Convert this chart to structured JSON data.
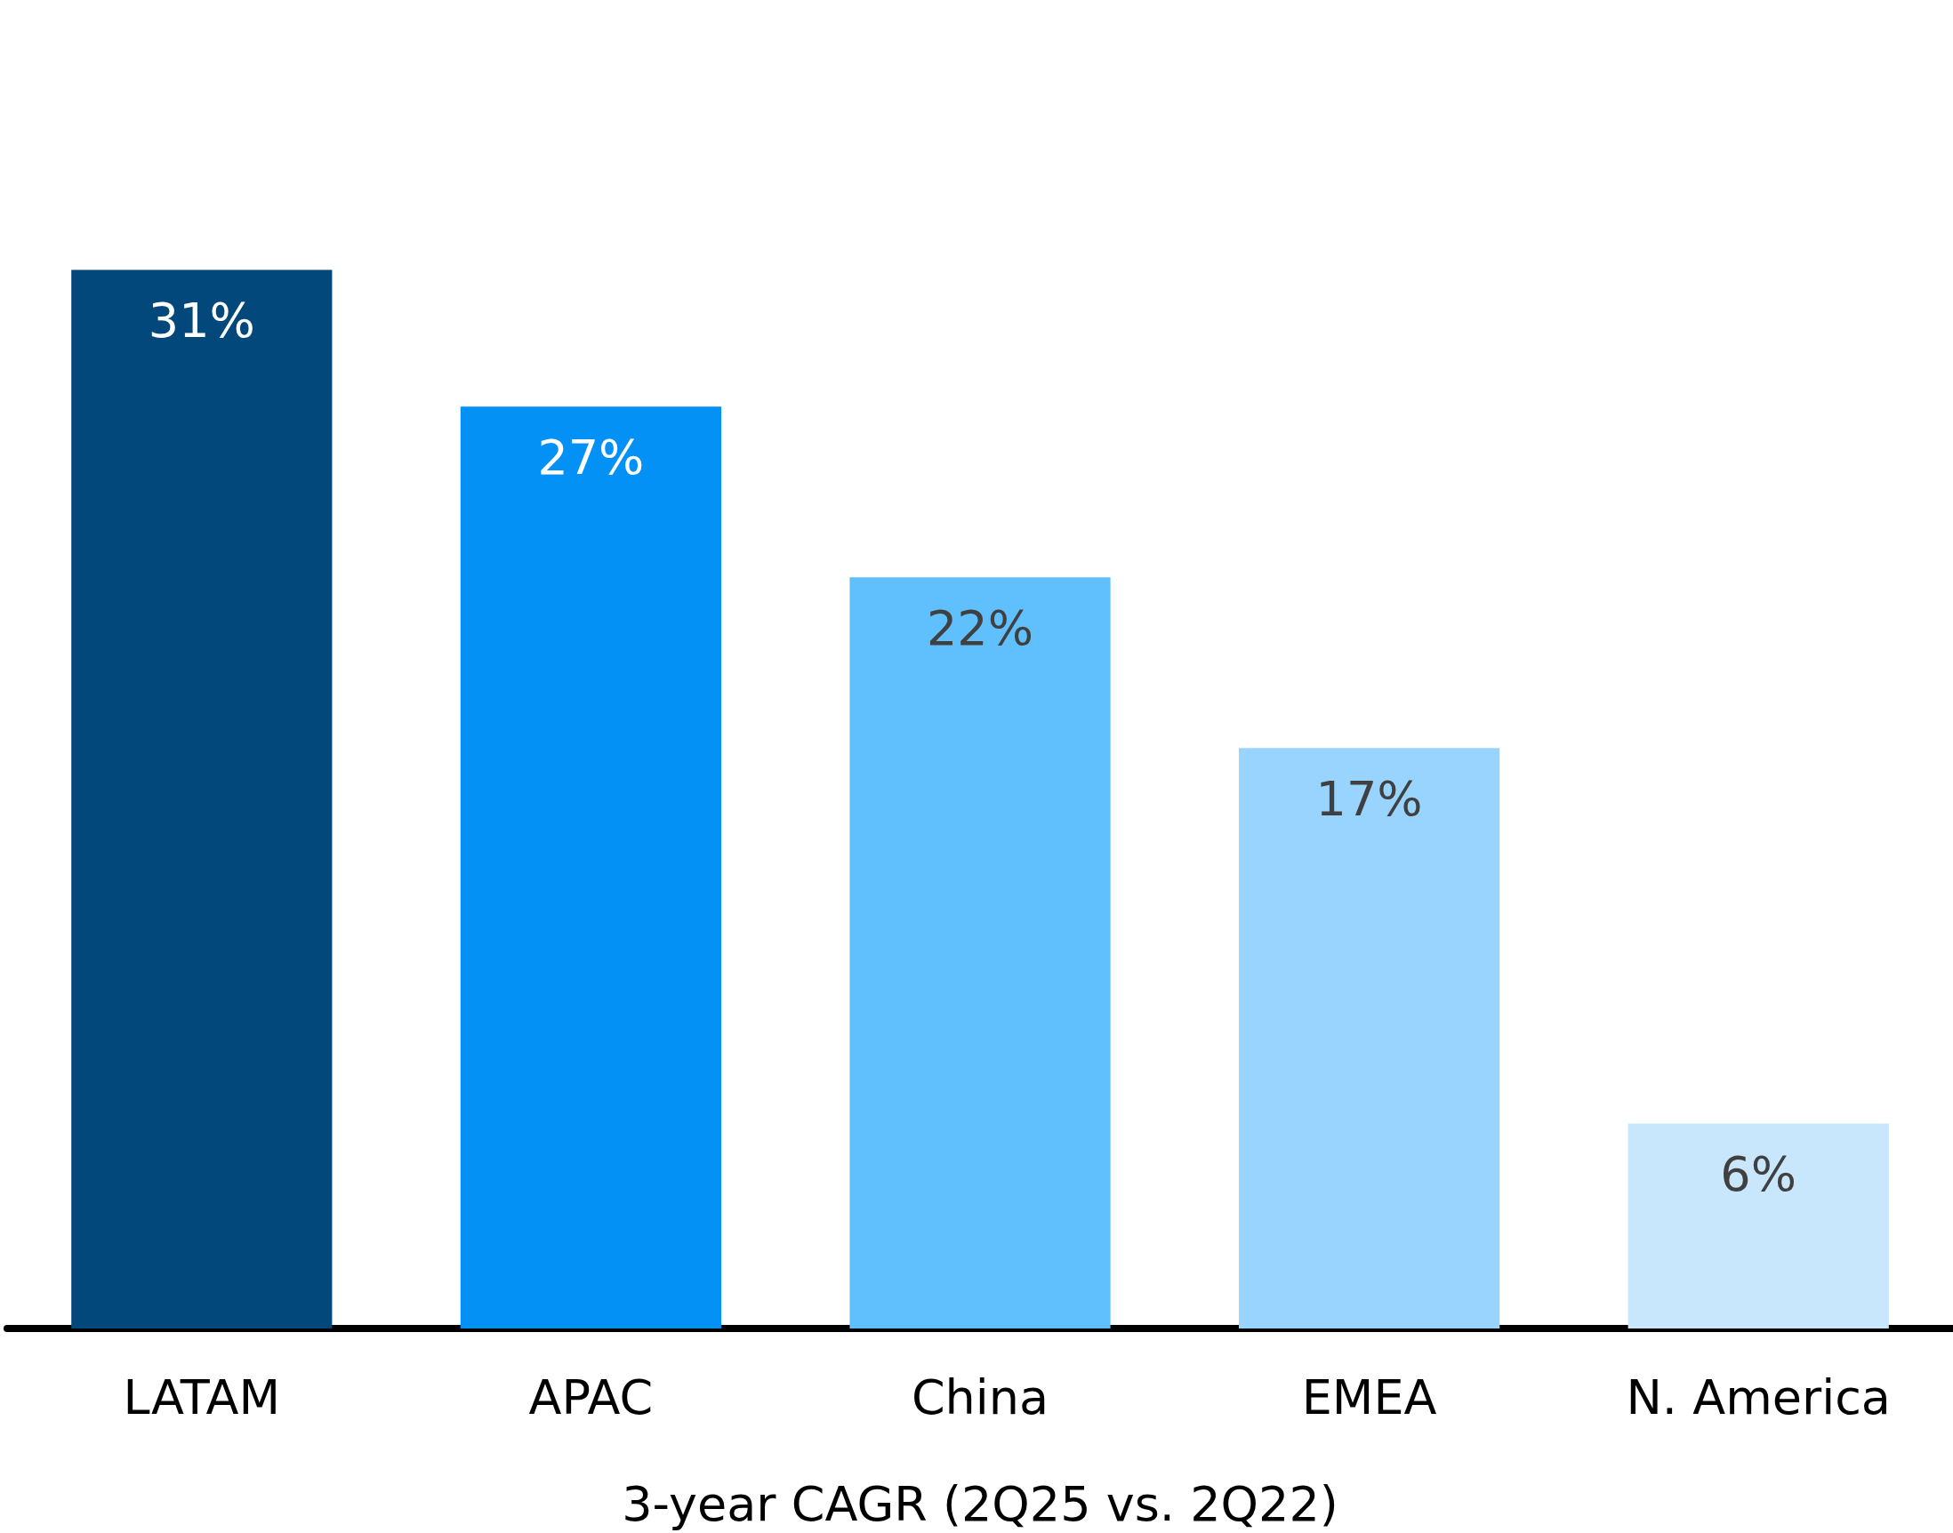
{
  "chart_data": {
    "type": "bar",
    "xlabel": "3-year CAGR (2Q25 vs. 2Q22)",
    "categories": [
      "LATAM",
      "APAC",
      "China",
      "EMEA",
      "N. America"
    ],
    "values": [
      31,
      27,
      22,
      17,
      6
    ],
    "colors": [
      "#03487a",
      "#0391f5",
      "#60bffd",
      "#98d4fe",
      "#c8e7fd"
    ],
    "value_labels": [
      "31%",
      "27%",
      "22%",
      "17%",
      "6%"
    ]
  }
}
